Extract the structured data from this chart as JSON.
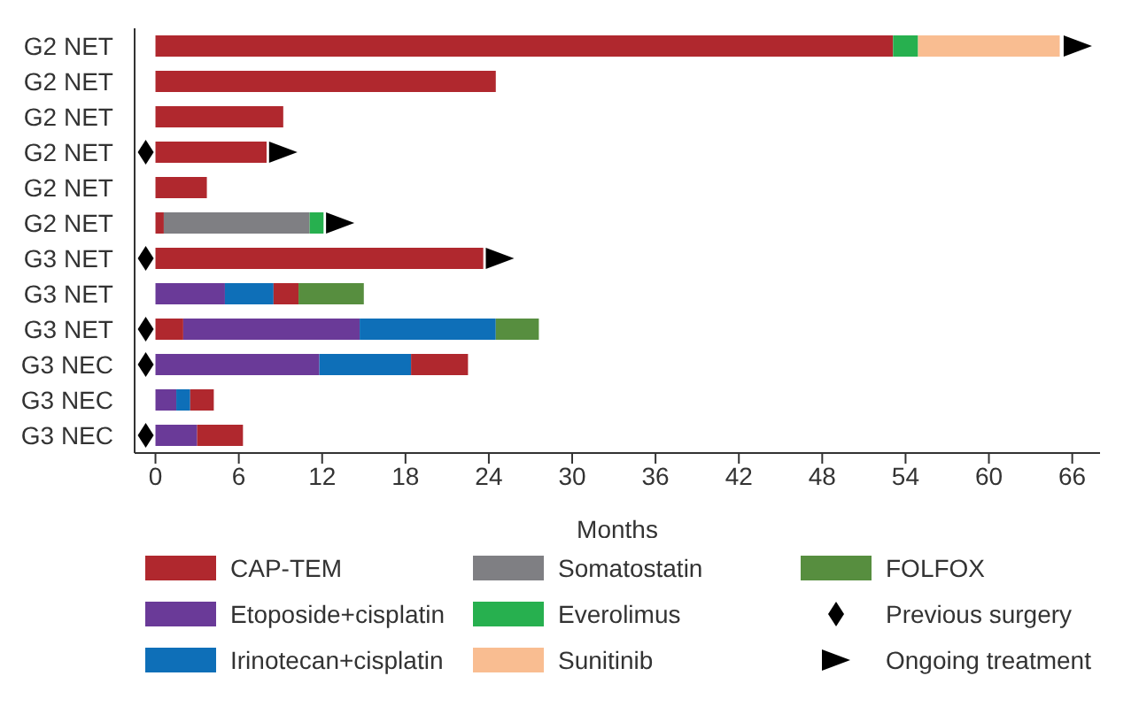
{
  "chart_data": {
    "type": "bar",
    "orientation": "horizontal",
    "stacked": true,
    "xlabel": "Months",
    "categories": [
      "G2 NET",
      "G2 NET",
      "G2 NET",
      "G2 NET",
      "G2 NET",
      "G2 NET",
      "G3 NET",
      "G3 NET",
      "G3 NET",
      "G3 NEC",
      "G3 NEC",
      "G3 NEC"
    ],
    "series": [
      {
        "name": "CAP-TEM",
        "color": "#b0282e",
        "values": [
          53.1,
          24.5,
          9.2,
          8.0,
          3.7,
          0.6,
          23.6,
          null,
          2.0,
          null,
          null,
          null
        ]
      },
      {
        "name": "Etoposide+cisplatin",
        "color": "#6a3a98",
        "values": [
          null,
          null,
          null,
          null,
          null,
          null,
          null,
          5.0,
          12.7,
          11.8,
          1.5,
          3.0
        ]
      },
      {
        "name": "Irinotecan+cisplatin",
        "color": "#0e6fb8",
        "values": [
          null,
          null,
          null,
          null,
          null,
          null,
          null,
          3.5,
          9.8,
          6.6,
          1.0,
          null
        ]
      },
      {
        "color": "#b0282e",
        "values": [
          null,
          null,
          null,
          null,
          null,
          null,
          null,
          1.8,
          null,
          4.1,
          1.7,
          3.3
        ]
      },
      {
        "name": "Somatostatin",
        "color": "#7f7f83",
        "values": [
          null,
          null,
          null,
          null,
          null,
          10.5,
          null,
          null,
          null,
          null,
          null,
          null
        ]
      },
      {
        "name": "Everolimus",
        "color": "#27b04f",
        "values": [
          1.8,
          null,
          null,
          null,
          null,
          1.0,
          null,
          null,
          null,
          null,
          null,
          null
        ]
      },
      {
        "name": "Sunitinib",
        "color": "#f9bd91",
        "values": [
          10.2,
          null,
          null,
          null,
          null,
          null,
          null,
          null,
          null,
          null,
          null,
          null
        ]
      },
      {
        "name": "FOLFOX",
        "color": "#578e3f",
        "values": [
          null,
          null,
          null,
          null,
          null,
          null,
          null,
          4.7,
          3.1,
          null,
          null,
          null
        ]
      },
      {
        "name": "Previous surgery",
        "type": "scatter",
        "marker": "diamond",
        "color": "#000000",
        "values": [
          null,
          null,
          null,
          -0.7,
          null,
          null,
          -0.7,
          null,
          -0.7,
          -0.7,
          null,
          -0.7
        ]
      },
      {
        "name": "Ongoing treatment",
        "type": "scatter",
        "marker": "triangle",
        "color": "#000000",
        "values": [
          66.4,
          null,
          null,
          9.2,
          null,
          13.3,
          24.8,
          null,
          null,
          null,
          null,
          null
        ]
      }
    ],
    "xlim": [
      -1.5,
      68
    ],
    "xticks": [
      0,
      6,
      12,
      18,
      24,
      30,
      36,
      42,
      48,
      54,
      60,
      66
    ],
    "legend": "bottom"
  }
}
